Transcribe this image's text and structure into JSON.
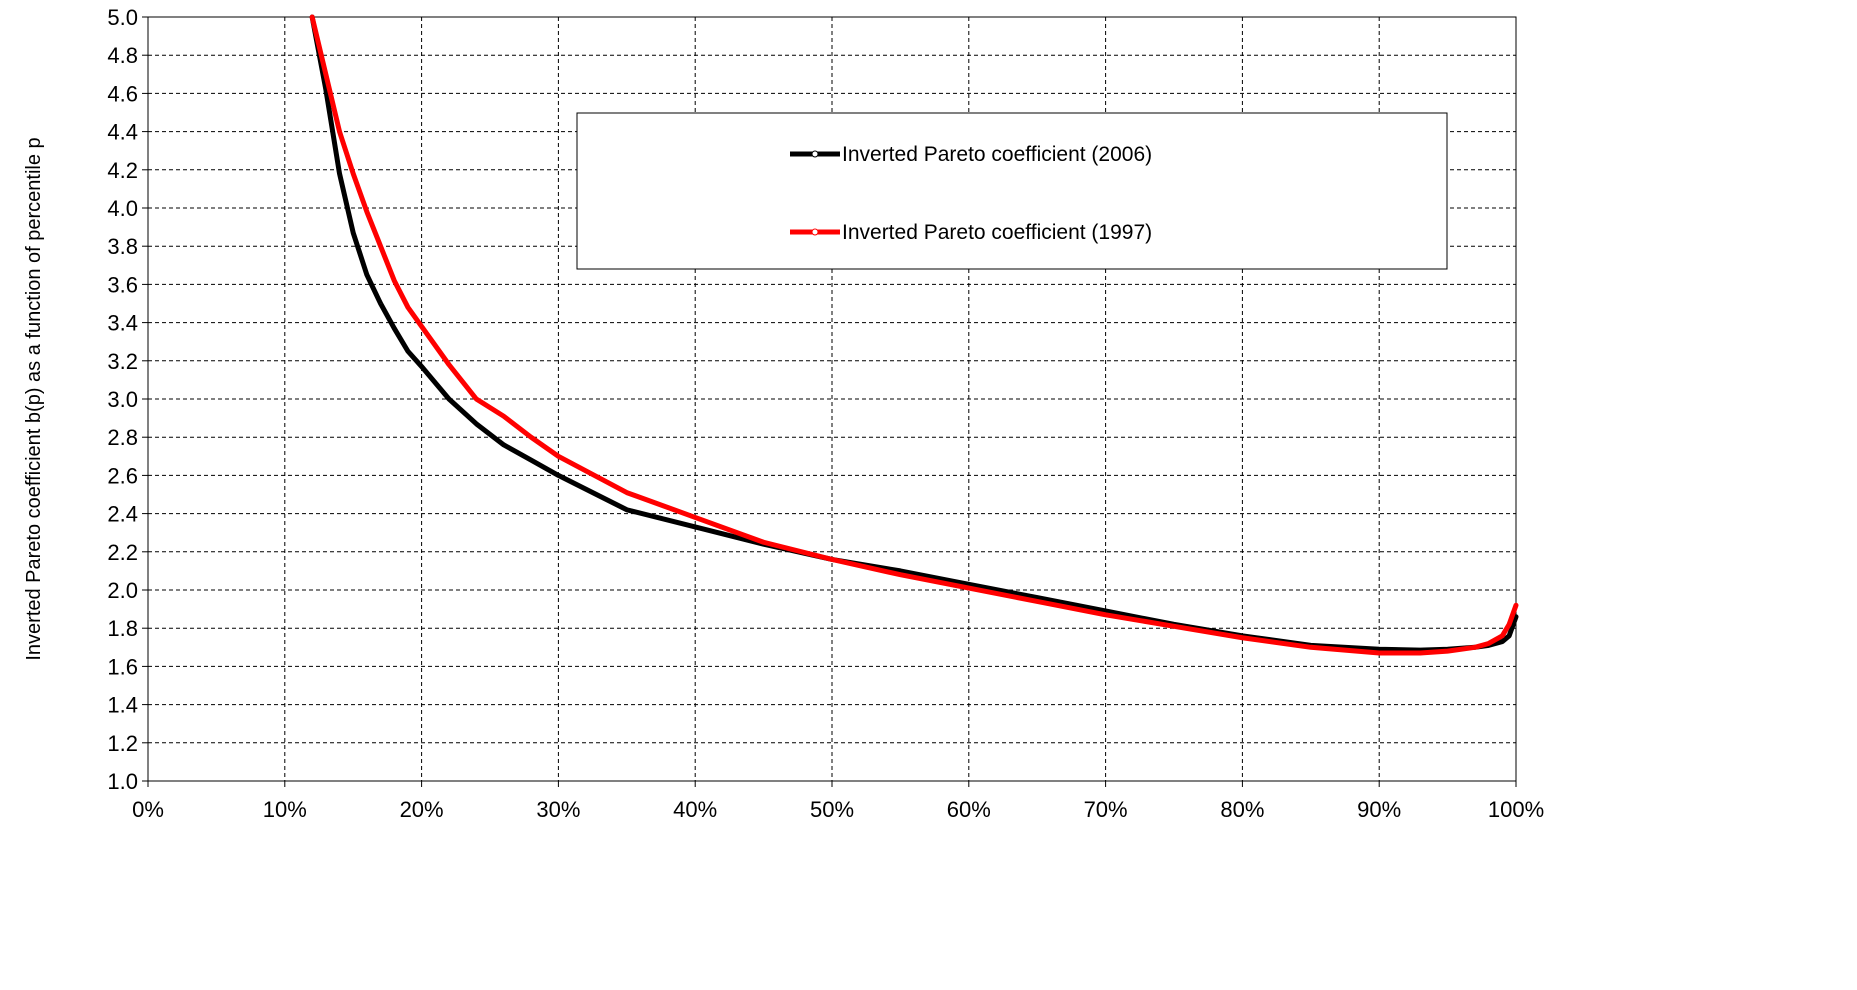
{
  "chart_data": {
    "type": "line",
    "title": "",
    "xlabel": "",
    "ylabel": "Inverted Pareto coefficient b(p) as a function of percentile p",
    "xlim": [
      0,
      100
    ],
    "ylim": [
      1.0,
      5.0
    ],
    "x_ticks": [
      "0%",
      "10%",
      "20%",
      "30%",
      "40%",
      "50%",
      "60%",
      "70%",
      "80%",
      "90%",
      "100%"
    ],
    "y_ticks": [
      "1.0",
      "1.2",
      "1.4",
      "1.6",
      "1.8",
      "2.0",
      "2.2",
      "2.4",
      "2.6",
      "2.8",
      "3.0",
      "3.2",
      "3.4",
      "3.6",
      "3.8",
      "4.0",
      "4.2",
      "4.4",
      "4.6",
      "4.8",
      "5.0"
    ],
    "grid": true,
    "grid_style": "dashed",
    "legend_position": "upper-right",
    "series": [
      {
        "name": "Inverted Pareto coefficient (2006)",
        "color": "#000000",
        "x": [
          12,
          13,
          14,
          15,
          16,
          17,
          18,
          19,
          20,
          22,
          24,
          26,
          28,
          30,
          35,
          40,
          45,
          50,
          55,
          60,
          65,
          70,
          75,
          80,
          85,
          90,
          93,
          95,
          97,
          98,
          99,
          99.5,
          100
        ],
        "y": [
          5.0,
          4.62,
          4.18,
          3.87,
          3.65,
          3.5,
          3.37,
          3.25,
          3.17,
          3.0,
          2.87,
          2.76,
          2.68,
          2.6,
          2.42,
          2.33,
          2.24,
          2.16,
          2.1,
          2.03,
          1.96,
          1.89,
          1.82,
          1.76,
          1.71,
          1.69,
          1.685,
          1.69,
          1.7,
          1.71,
          1.73,
          1.76,
          1.86
        ]
      },
      {
        "name": "Inverted Pareto coefficient (1997)",
        "color": "#ff0000",
        "x": [
          12,
          13,
          14,
          15,
          16,
          17,
          18,
          19,
          20,
          22,
          24,
          26,
          28,
          30,
          35,
          40,
          45,
          50,
          55,
          60,
          65,
          70,
          75,
          80,
          85,
          90,
          93,
          95,
          97,
          98,
          99,
          99.5,
          100
        ],
        "y": [
          5.0,
          4.7,
          4.4,
          4.18,
          3.98,
          3.8,
          3.62,
          3.48,
          3.38,
          3.18,
          3.0,
          2.91,
          2.8,
          2.7,
          2.51,
          2.38,
          2.25,
          2.16,
          2.08,
          2.01,
          1.94,
          1.87,
          1.81,
          1.75,
          1.7,
          1.67,
          1.67,
          1.68,
          1.7,
          1.72,
          1.76,
          1.82,
          1.92
        ]
      }
    ]
  }
}
